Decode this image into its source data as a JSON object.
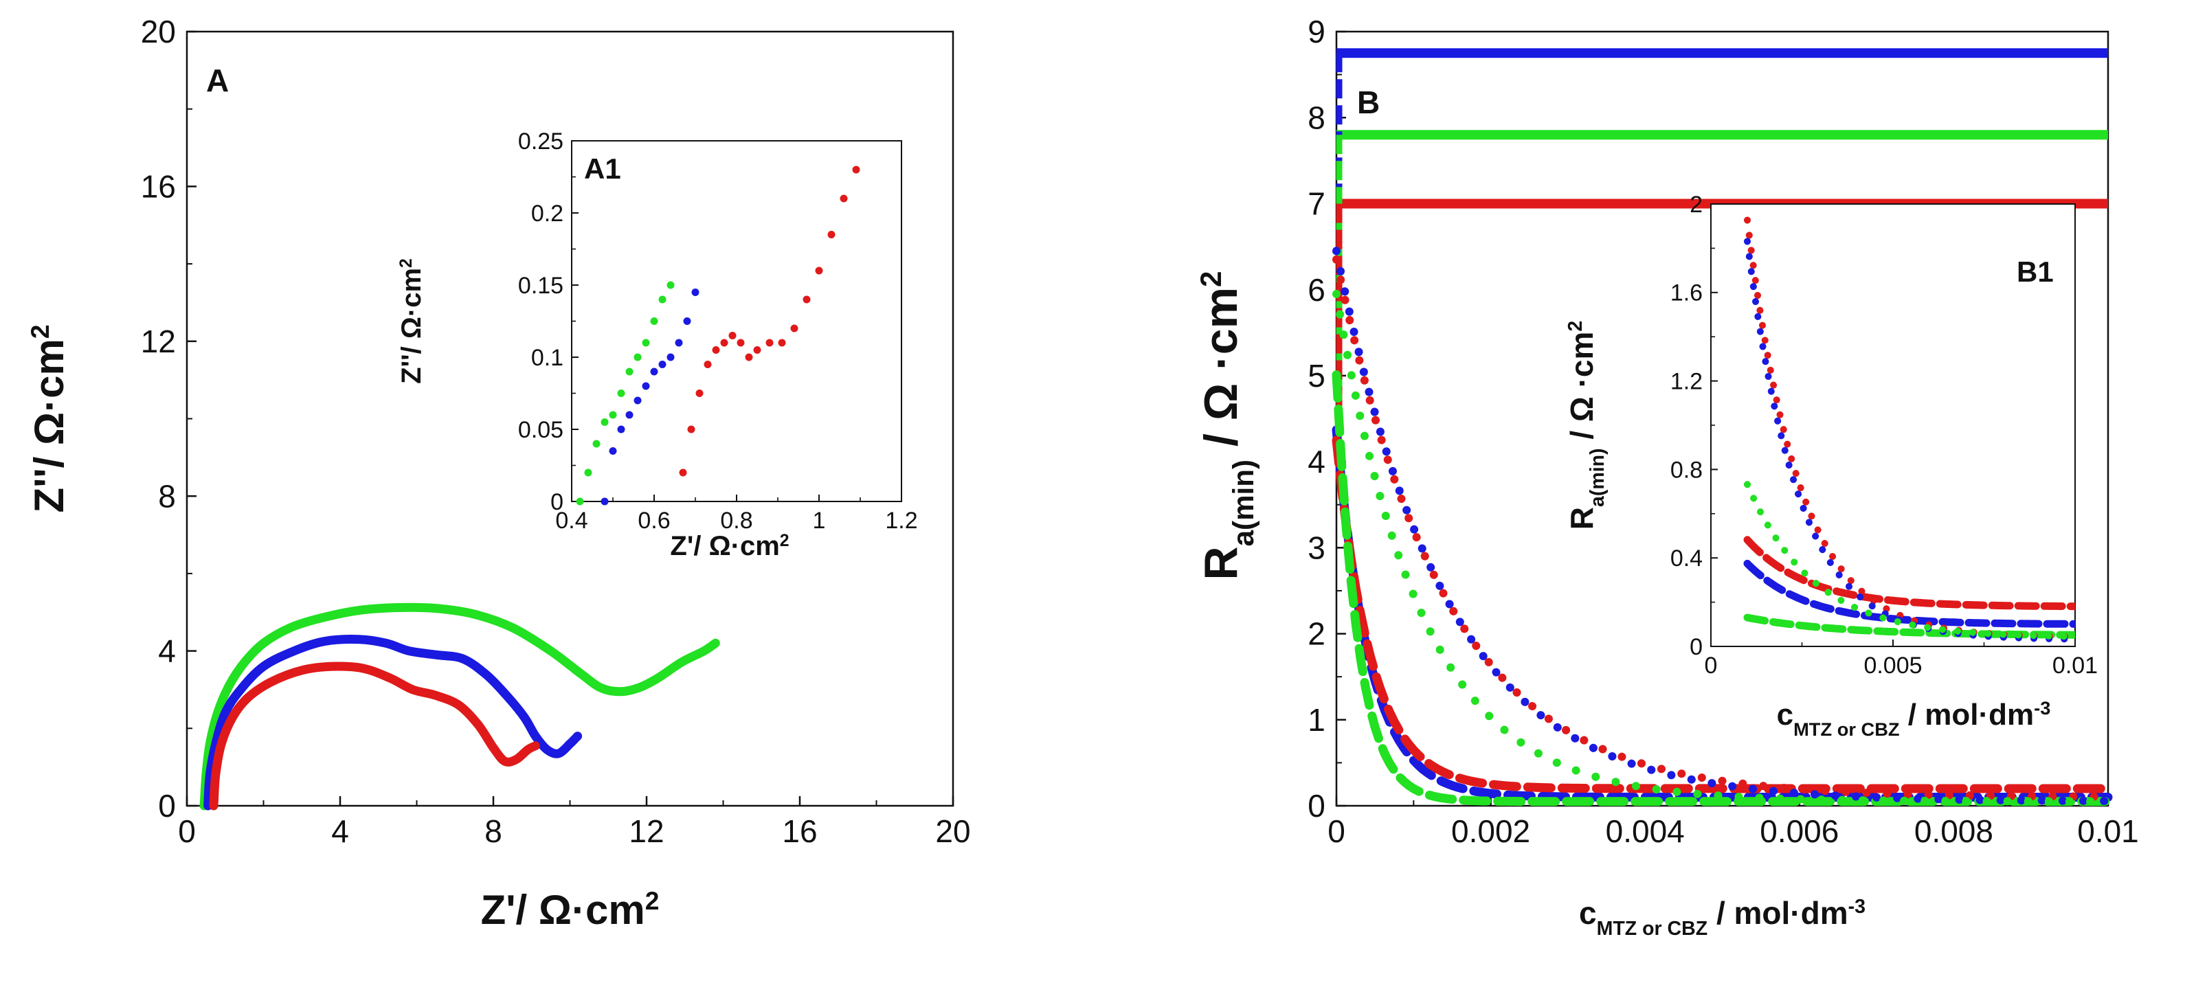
{
  "chart_data": [
    {
      "id": "A",
      "panel_label": "A",
      "type": "line",
      "xlabel_main": "Z'/ Ω·cm",
      "xlabel_sup": "2",
      "ylabel_main": "Z''/ Ω·cm",
      "ylabel_sup": "2",
      "xlim": [
        0,
        20
      ],
      "ylim": [
        0,
        20
      ],
      "xticks": [
        "0",
        "4",
        "8",
        "12",
        "16",
        "20"
      ],
      "yticks": [
        "0",
        "4",
        "8",
        "12",
        "16",
        "20"
      ],
      "series": [
        {
          "name": "green",
          "color": "#22e022",
          "style": "solid",
          "x": [
            0.45,
            0.5,
            0.6,
            0.8,
            1.1,
            1.5,
            2.0,
            2.7,
            3.5,
            4.5,
            5.5,
            6.5,
            7.5,
            8.5,
            9.5,
            10.3,
            10.8,
            11.3,
            11.8,
            12.3,
            12.9,
            13.5,
            13.8
          ],
          "y": [
            0,
            0.8,
            1.6,
            2.4,
            3.1,
            3.7,
            4.2,
            4.6,
            4.85,
            5.05,
            5.12,
            5.1,
            4.95,
            4.6,
            4.0,
            3.4,
            3.05,
            2.95,
            3.05,
            3.3,
            3.7,
            4.0,
            4.2
          ]
        },
        {
          "name": "blue",
          "color": "#1a1ae0",
          "style": "solid",
          "x": [
            0.55,
            0.6,
            0.75,
            1.0,
            1.4,
            2.0,
            2.8,
            3.6,
            4.5,
            5.2,
            5.8,
            6.5,
            7.2,
            7.8,
            8.3,
            8.8,
            9.1,
            9.4,
            9.7,
            10.0,
            10.2
          ],
          "y": [
            0,
            0.8,
            1.6,
            2.4,
            3.0,
            3.6,
            4.0,
            4.25,
            4.3,
            4.2,
            4.0,
            3.9,
            3.8,
            3.4,
            2.9,
            2.3,
            1.8,
            1.45,
            1.35,
            1.6,
            1.8
          ]
        },
        {
          "name": "red",
          "color": "#e01a1a",
          "style": "solid",
          "x": [
            0.7,
            0.75,
            0.9,
            1.2,
            1.6,
            2.2,
            3.0,
            3.8,
            4.6,
            5.3,
            5.9,
            6.5,
            7.1,
            7.6,
            8.0,
            8.3,
            8.6,
            8.9,
            9.1
          ],
          "y": [
            0,
            0.8,
            1.6,
            2.3,
            2.8,
            3.2,
            3.5,
            3.6,
            3.55,
            3.3,
            3.0,
            2.85,
            2.6,
            2.1,
            1.5,
            1.15,
            1.2,
            1.45,
            1.55
          ]
        }
      ]
    },
    {
      "id": "A1",
      "panel_label": "A1",
      "type": "scatter",
      "xlabel_main": "Z'/ Ω·cm",
      "xlabel_sup": "2",
      "ylabel_main": "Z''/ Ω·cm",
      "ylabel_sup": "2",
      "xlim": [
        0.4,
        1.2
      ],
      "ylim": [
        0,
        0.25
      ],
      "xticks": [
        "0.4",
        "0.6",
        "0.8",
        "1",
        "1.2"
      ],
      "yticks": [
        "0",
        "0.05",
        "0.1",
        "0.15",
        "0.2",
        "0.25"
      ],
      "series": [
        {
          "name": "green",
          "color": "#22e022",
          "x": [
            0.42,
            0.44,
            0.46,
            0.48,
            0.5,
            0.52,
            0.54,
            0.56,
            0.58,
            0.6,
            0.62,
            0.64
          ],
          "y": [
            0.0,
            0.02,
            0.04,
            0.055,
            0.06,
            0.075,
            0.09,
            0.1,
            0.11,
            0.125,
            0.14,
            0.15
          ]
        },
        {
          "name": "blue",
          "color": "#1a1ae0",
          "x": [
            0.48,
            0.5,
            0.52,
            0.54,
            0.56,
            0.58,
            0.6,
            0.62,
            0.64,
            0.66,
            0.68,
            0.7
          ],
          "y": [
            0.0,
            0.035,
            0.05,
            0.06,
            0.07,
            0.08,
            0.09,
            0.095,
            0.1,
            0.11,
            0.125,
            0.145
          ]
        },
        {
          "name": "red",
          "color": "#e01a1a",
          "x": [
            0.67,
            0.69,
            0.71,
            0.73,
            0.75,
            0.77,
            0.79,
            0.81,
            0.83,
            0.85,
            0.88,
            0.91,
            0.94,
            0.97,
            1.0,
            1.03,
            1.06,
            1.09
          ],
          "y": [
            0.02,
            0.05,
            0.075,
            0.095,
            0.105,
            0.11,
            0.115,
            0.11,
            0.1,
            0.105,
            0.11,
            0.11,
            0.12,
            0.14,
            0.16,
            0.185,
            0.21,
            0.23
          ]
        }
      ]
    },
    {
      "id": "B",
      "panel_label": "B",
      "type": "line",
      "xlabel_main": "c",
      "xlabel_sub": "MTZ or CBZ",
      "xlabel_rest": " / mol·dm",
      "xlabel_sup": "-3",
      "ylabel_main": "R",
      "ylabel_sub": "a(min)",
      "ylabel_rest": " / Ω ·cm",
      "ylabel_sup": "2",
      "xlim": [
        0,
        0.01
      ],
      "ylim": [
        0,
        9
      ],
      "xticks": [
        "0",
        "0.002",
        "0.004",
        "0.006",
        "0.008",
        "0.01"
      ],
      "yticks": [
        "0",
        "1",
        "2",
        "3",
        "4",
        "5",
        "6",
        "7",
        "8",
        "9"
      ],
      "horizontal_lines": [
        {
          "name": "blue",
          "color": "#1a1ae0",
          "y": 8.75
        },
        {
          "name": "green",
          "color": "#22e022",
          "y": 7.8
        },
        {
          "name": "red",
          "color": "#e01a1a",
          "y": 7.0
        }
      ],
      "series": [
        {
          "name": "blue dashed",
          "color": "#1a1ae0",
          "style": "dashed",
          "A": 4.27,
          "k": 2300,
          "c": 0.1
        },
        {
          "name": "red dashed",
          "color": "#e01a1a",
          "style": "dashed",
          "A": 4.05,
          "k": 2200,
          "c": 0.2
        },
        {
          "name": "green dashed",
          "color": "#22e022",
          "style": "dashed",
          "A": 4.96,
          "k": 3500,
          "c": 0.05
        },
        {
          "name": "blue dotted",
          "color": "#1a1ae0",
          "style": "dotted",
          "A": 6.4,
          "k": 700,
          "c": 0.05
        },
        {
          "name": "red dotted",
          "color": "#e01a1a",
          "style": "dotted",
          "A": 6.25,
          "k": 700,
          "c": 0.1
        },
        {
          "name": "green dotted",
          "color": "#22e022",
          "style": "dotted",
          "A": 5.9,
          "k": 900,
          "c": 0.05
        }
      ]
    },
    {
      "id": "B1",
      "panel_label": "B1",
      "type": "line",
      "xlabel_main": "c",
      "xlabel_sub": "MTZ or CBZ",
      "xlabel_rest": " / mol·dm",
      "xlabel_sup": "-3",
      "ylabel_main": "R",
      "ylabel_sub": "a(min)",
      "ylabel_rest": " / Ω ·cm",
      "ylabel_sup": "2",
      "xlim": [
        0,
        0.01
      ],
      "ylim": [
        0,
        2
      ],
      "xticks": [
        "0",
        "0.005",
        "0.01"
      ],
      "yticks": [
        "0",
        "0.4",
        "0.8",
        "1.2",
        "1.6",
        "2"
      ],
      "x_start": 0.001,
      "series": [
        {
          "name": "red dashed",
          "color": "#e01a1a",
          "style": "dashed",
          "A": 0.55,
          "k": 600,
          "c": 0.18
        },
        {
          "name": "blue dashed",
          "color": "#1a1ae0",
          "style": "dashed",
          "A": 0.5,
          "k": 600,
          "c": 0.1
        },
        {
          "name": "green dashed",
          "color": "#22e022",
          "style": "dashed",
          "A": 0.12,
          "k": 400,
          "c": 0.05
        },
        {
          "name": "red dotted",
          "color": "#e01a1a",
          "style": "dotted",
          "A": 3.8,
          "k": 700,
          "c": 0.04
        },
        {
          "name": "blue dotted",
          "color": "#1a1ae0",
          "style": "dotted",
          "A": 3.7,
          "k": 720,
          "c": 0.03
        },
        {
          "name": "green dotted",
          "color": "#22e022",
          "style": "dotted",
          "A": 1.2,
          "k": 550,
          "c": 0.04
        }
      ]
    }
  ]
}
